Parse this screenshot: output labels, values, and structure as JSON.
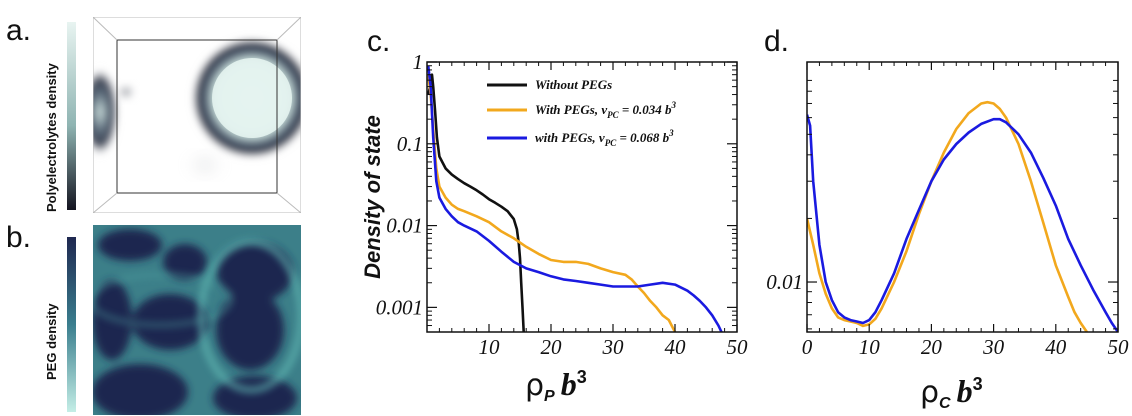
{
  "panel_labels": {
    "a": "a.",
    "b": "b.",
    "c": "c.",
    "d": "d."
  },
  "colorbars": {
    "a": {
      "label": "Polyelectrolytes density"
    },
    "b": {
      "label": "PEG density"
    }
  },
  "colors": {
    "black": "#111111",
    "orange": "#f2a81d",
    "blue": "#1a1ae0",
    "peg_dark": "#1f2850",
    "peg_teal": "#5fb9b2",
    "pe_dark": "#1c1c2a",
    "pe_light": "#e2f2ee"
  },
  "chart_data": [
    {
      "panel": "c",
      "type": "line",
      "ylabel": "Density of state",
      "xlabel": {
        "symbol": "ρ",
        "sub": "P",
        "b": "b",
        "sup": "3"
      },
      "xlim": [
        0,
        50
      ],
      "ylim": [
        0.0005,
        1
      ],
      "yscale": "log",
      "xticks": [
        10,
        20,
        30,
        40,
        50
      ],
      "yticks": [
        {
          "value": 1,
          "label": "1"
        },
        {
          "value": 0.1,
          "label": "0.1"
        },
        {
          "value": 0.01,
          "label": "0.01"
        },
        {
          "value": 0.001,
          "label": "0.001"
        }
      ],
      "legend": {
        "position": "top-right",
        "entries": [
          {
            "series": 0,
            "text": "Without PEGs",
            "sub": "",
            "tail": "",
            "sup": ""
          },
          {
            "series": 1,
            "text": "With PEGs, v",
            "sub": "PC",
            "tail": " = 0.034 b",
            "sup": "3"
          },
          {
            "series": 2,
            "text": "with PEGs, v",
            "sub": "PC",
            "tail": " = 0.068 b",
            "sup": "3"
          }
        ]
      },
      "series": [
        {
          "color": "black",
          "x": [
            0.2,
            0.5,
            0.8,
            1.0,
            1.3,
            1.6,
            2,
            3,
            4,
            5,
            6,
            7,
            8,
            9,
            10,
            11,
            12,
            13,
            14,
            14.5,
            14.8,
            15.0,
            15.2,
            15.4,
            15.6
          ],
          "y": [
            0.4,
            0.5,
            0.7,
            0.5,
            0.25,
            0.12,
            0.07,
            0.05,
            0.042,
            0.037,
            0.033,
            0.03,
            0.027,
            0.024,
            0.021,
            0.019,
            0.017,
            0.015,
            0.012,
            0.009,
            0.006,
            0.004,
            0.002,
            0.001,
            0.0005
          ]
        },
        {
          "color": "orange",
          "x": [
            0.2,
            0.6,
            1.0,
            1.5,
            2,
            3,
            4,
            5,
            6,
            8,
            10,
            12,
            14,
            16,
            18,
            20,
            22,
            24,
            26,
            28,
            30,
            32,
            33,
            34,
            35,
            36,
            37,
            38,
            39,
            40
          ],
          "y": [
            0.7,
            0.4,
            0.15,
            0.05,
            0.03,
            0.022,
            0.018,
            0.016,
            0.015,
            0.013,
            0.011,
            0.0085,
            0.007,
            0.0055,
            0.0045,
            0.0038,
            0.0036,
            0.0036,
            0.0034,
            0.003,
            0.0027,
            0.0025,
            0.0022,
            0.0018,
            0.0015,
            0.0012,
            0.001,
            0.0008,
            0.0007,
            0.0005
          ]
        },
        {
          "color": "blue",
          "x": [
            0.2,
            0.6,
            1.0,
            1.5,
            2,
            3,
            4,
            5,
            6,
            8,
            10,
            12,
            14,
            16,
            18,
            20,
            22,
            24,
            26,
            28,
            30,
            32,
            34,
            36,
            38,
            40,
            42,
            43,
            44,
            45,
            46,
            47,
            47.5
          ],
          "y": [
            0.9,
            0.5,
            0.12,
            0.035,
            0.022,
            0.016,
            0.013,
            0.011,
            0.01,
            0.0085,
            0.0065,
            0.0048,
            0.0036,
            0.003,
            0.0027,
            0.0024,
            0.0022,
            0.0021,
            0.002,
            0.0019,
            0.0018,
            0.0018,
            0.0018,
            0.0019,
            0.002,
            0.0019,
            0.0016,
            0.0014,
            0.0012,
            0.001,
            0.0008,
            0.0006,
            0.0005
          ]
        }
      ]
    },
    {
      "panel": "d",
      "type": "line",
      "ylabel": "",
      "xlabel": {
        "symbol": "ρ",
        "sub": "C",
        "b": "b",
        "sup": "3"
      },
      "xlim": [
        0,
        50
      ],
      "ylim": [
        0.0058,
        0.11
      ],
      "yscale": "log",
      "xticks": [
        0,
        10,
        20,
        30,
        40,
        50
      ],
      "yticks": [
        {
          "value": 0.01,
          "label": "0.01"
        }
      ],
      "series": [
        {
          "color": "orange",
          "x": [
            0,
            1,
            2,
            3,
            4,
            5,
            6,
            7,
            8,
            9,
            10,
            11,
            12,
            14,
            16,
            18,
            20,
            22,
            24,
            26,
            28,
            29,
            30,
            31,
            32,
            34,
            36,
            38,
            40,
            42,
            43,
            44,
            45
          ],
          "y": [
            0.02,
            0.015,
            0.011,
            0.0088,
            0.0075,
            0.0068,
            0.0066,
            0.0065,
            0.0064,
            0.0062,
            0.0063,
            0.0067,
            0.0075,
            0.01,
            0.014,
            0.021,
            0.03,
            0.041,
            0.053,
            0.063,
            0.07,
            0.071,
            0.07,
            0.066,
            0.06,
            0.045,
            0.03,
            0.019,
            0.012,
            0.0085,
            0.0072,
            0.0064,
            0.0058
          ]
        },
        {
          "color": "blue",
          "x": [
            0,
            0.5,
            1,
            2,
            3,
            4,
            5,
            6,
            7,
            8,
            9,
            10,
            11,
            12,
            14,
            16,
            18,
            20,
            22,
            24,
            26,
            28,
            30,
            31,
            32,
            34,
            36,
            38,
            40,
            42,
            44,
            46,
            48,
            49,
            50
          ],
          "y": [
            0.062,
            0.055,
            0.03,
            0.015,
            0.01,
            0.0082,
            0.0072,
            0.0068,
            0.0066,
            0.0065,
            0.0064,
            0.0066,
            0.0072,
            0.0082,
            0.011,
            0.016,
            0.022,
            0.03,
            0.038,
            0.045,
            0.051,
            0.056,
            0.059,
            0.059,
            0.057,
            0.05,
            0.041,
            0.031,
            0.023,
            0.016,
            0.012,
            0.0092,
            0.0072,
            0.0064,
            0.0058
          ]
        }
      ]
    }
  ]
}
